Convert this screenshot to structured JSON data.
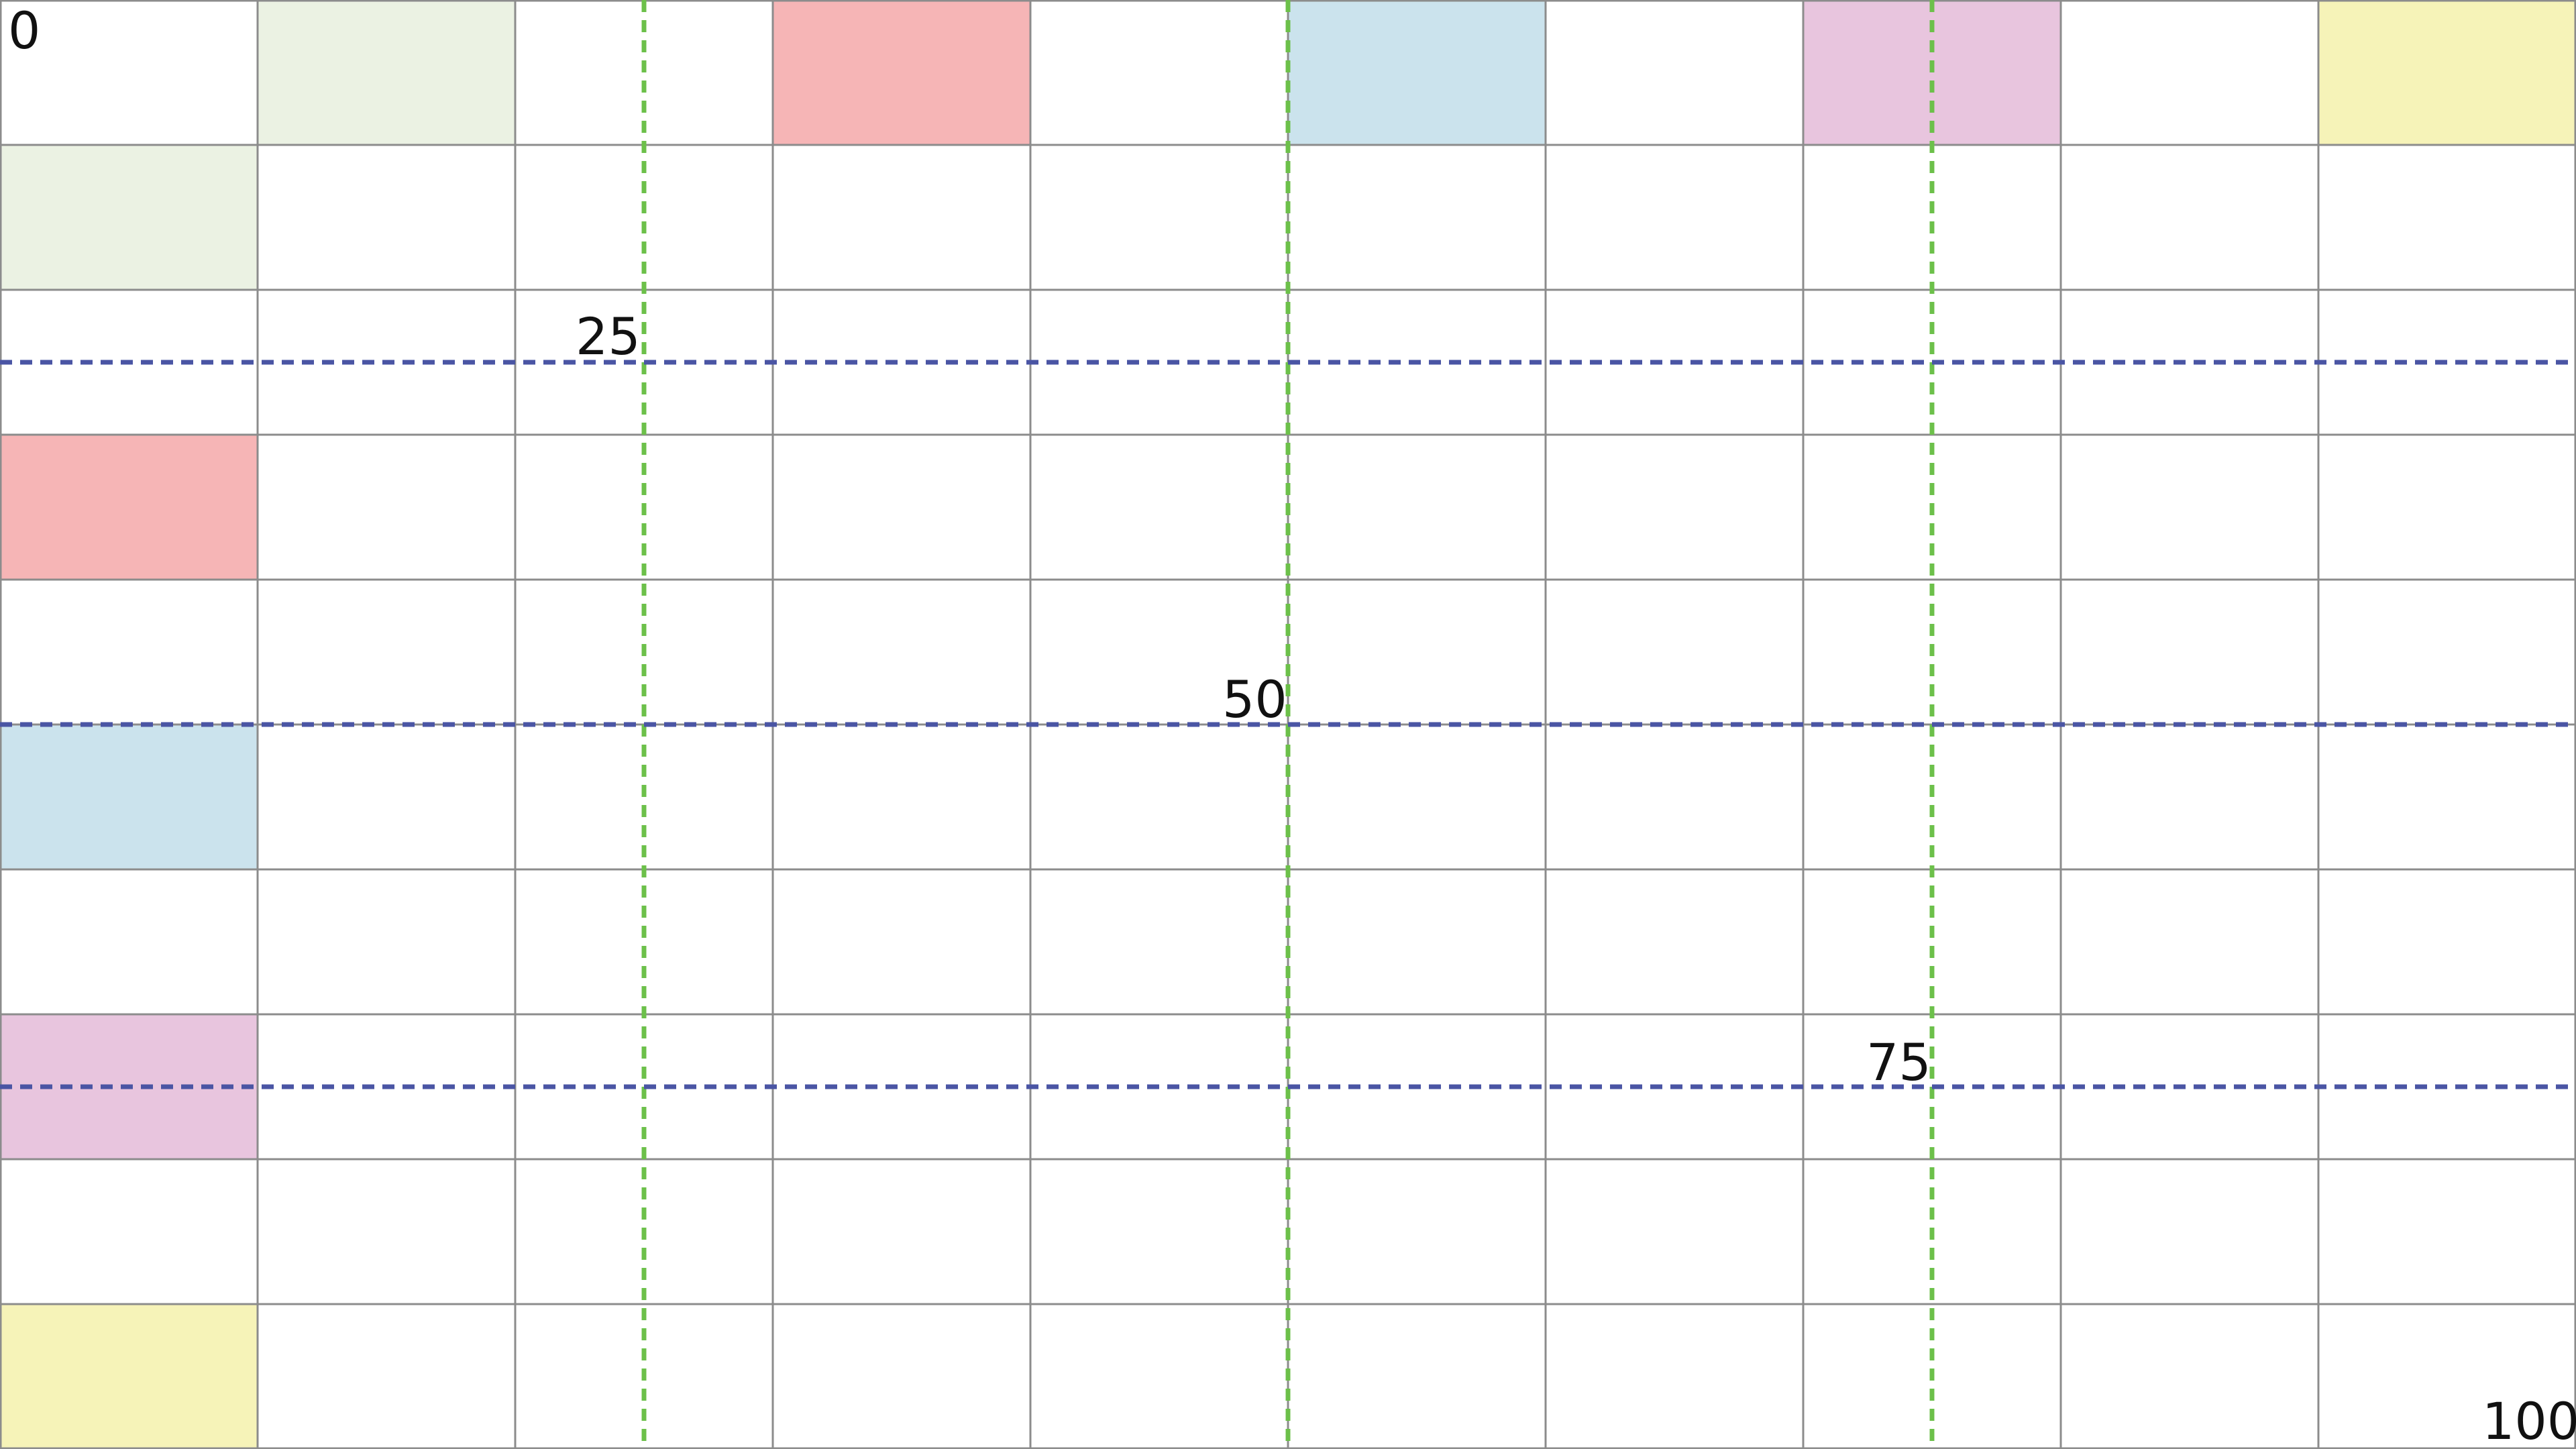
{
  "labels": {
    "origin": "0",
    "quarter": "25",
    "half": "50",
    "three_quarter": "75",
    "end": "100"
  },
  "colors": {
    "green": "#ebf2e3",
    "red": "#f6b5b6",
    "blue": "#cbe3ed",
    "purple": "#e8c5de",
    "yellow": "#f6f3b8",
    "grid_line": "#8c8c8c",
    "vertical_guide": "#6cc04a",
    "horizontal_guide": "#4a55a4"
  },
  "grid": {
    "rows": 10,
    "cols": 10,
    "colored_cells": [
      {
        "row": 0,
        "col": 1,
        "color": "green"
      },
      {
        "row": 0,
        "col": 3,
        "color": "red"
      },
      {
        "row": 0,
        "col": 5,
        "color": "blue"
      },
      {
        "row": 0,
        "col": 7,
        "color": "purple"
      },
      {
        "row": 0,
        "col": 9,
        "color": "yellow"
      },
      {
        "row": 1,
        "col": 0,
        "color": "green"
      },
      {
        "row": 3,
        "col": 0,
        "color": "red"
      },
      {
        "row": 5,
        "col": 0,
        "color": "blue"
      },
      {
        "row": 7,
        "col": 0,
        "color": "purple"
      },
      {
        "row": 9,
        "col": 0,
        "color": "yellow"
      }
    ]
  },
  "guides": {
    "vertical": [
      25,
      50,
      75
    ],
    "horizontal": [
      25,
      50,
      75
    ]
  }
}
